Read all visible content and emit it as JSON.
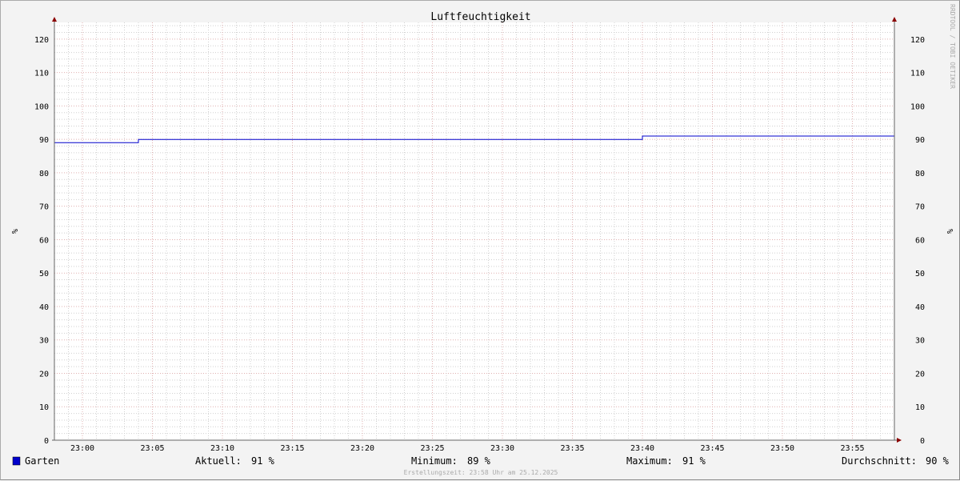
{
  "chart_data": {
    "type": "line",
    "title": "Luftfeuchtigkeit",
    "ylabel": "%",
    "ylabel_right": "%",
    "ylim": [
      0,
      125
    ],
    "yticks": [
      0,
      10,
      20,
      30,
      40,
      50,
      60,
      70,
      80,
      90,
      100,
      110,
      120
    ],
    "xlim": [
      "22:58",
      "23:58"
    ],
    "xticks": [
      "23:00",
      "23:05",
      "23:10",
      "23:15",
      "23:20",
      "23:25",
      "23:30",
      "23:35",
      "23:40",
      "23:45",
      "23:50",
      "23:55"
    ],
    "grid": true,
    "legend_position": "bottom",
    "series": [
      {
        "name": "Garten",
        "color": "#0000cc",
        "points": [
          {
            "x": "22:58",
            "y": 89
          },
          {
            "x": "23:04",
            "y": 89
          },
          {
            "x": "23:04",
            "y": 90
          },
          {
            "x": "23:40",
            "y": 90
          },
          {
            "x": "23:40",
            "y": 91
          },
          {
            "x": "23:58",
            "y": 91
          }
        ]
      }
    ],
    "legend": {
      "series_name": "Garten",
      "stats": [
        {
          "label": "Aktuell:",
          "value": "91 %"
        },
        {
          "label": "Minimum:",
          "value": "89 %"
        },
        {
          "label": "Maximum:",
          "value": "91 %"
        },
        {
          "label": "Durchschnitt:",
          "value": "90 %"
        }
      ]
    },
    "footer": "Erstellungszeit: 23:58 Uhr am 25.12.2025",
    "watermark": "RRDTOOL / TOBI OETIKER"
  }
}
